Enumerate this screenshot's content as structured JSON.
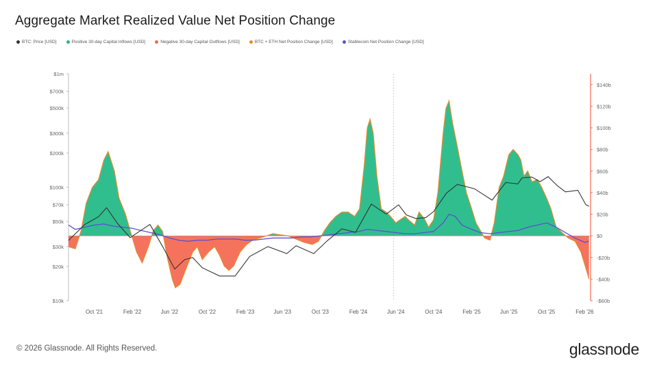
{
  "title": "Aggregate Market Realized Value Net Position Change",
  "watermark": "glassnode",
  "footer": {
    "copyright": "© 2026 Glassnode. All Rights Reserved.",
    "logo": "glassnode"
  },
  "legend": [
    {
      "label": "BTC: Price [USD]",
      "color": "#333333"
    },
    {
      "label": "Positive 30-day Capital Inflows [USD]",
      "color": "#1fb884"
    },
    {
      "label": "Negative 30-day Capital Outflows [USD]",
      "color": "#f4674f"
    },
    {
      "label": "BTC + ETH Net Position Change [USD]",
      "color": "#e8892a"
    },
    {
      "label": "Stablecoin Net Position Change [USD]",
      "color": "#5a4fd1"
    }
  ],
  "chart_data": {
    "type": "area",
    "x_ticks": [
      "Oct '21",
      "Feb '22",
      "Jun '22",
      "Oct '22",
      "Feb '23",
      "Jun '23",
      "Oct '23",
      "Feb '24",
      "Jun '24",
      "Oct '24",
      "Feb '25",
      "Jun '25",
      "Oct '25",
      "Feb '26"
    ],
    "x_tick_dates": [
      "2021-10-01",
      "2022-02-01",
      "2022-06-01",
      "2022-10-01",
      "2023-02-01",
      "2023-06-01",
      "2023-10-01",
      "2024-02-01",
      "2024-06-01",
      "2024-10-01",
      "2025-02-01",
      "2025-06-01",
      "2025-10-01",
      "2026-02-01"
    ],
    "x_range": [
      "2021-07-10",
      "2026-02-20"
    ],
    "left_axis": {
      "scale": "log",
      "range": [
        10000,
        1000000
      ],
      "ticks": [
        10000,
        20000,
        30000,
        50000,
        70000,
        100000,
        200000,
        300000,
        500000,
        700000,
        1000000
      ],
      "tick_labels": [
        "$10k",
        "$20k",
        "$30k",
        "$50k",
        "$70k",
        "$100k",
        "$200k",
        "$300k",
        "$500k",
        "$700k",
        "$1m"
      ]
    },
    "right_axis": {
      "scale": "linear",
      "range": [
        -60,
        150
      ],
      "unit": "b",
      "ticks": [
        -60,
        -40,
        -20,
        0,
        20,
        40,
        60,
        80,
        100,
        120,
        140
      ],
      "tick_labels": [
        "-$60b",
        "-$40b",
        "-$20b",
        "$0",
        "$20b",
        "$40b",
        "$60b",
        "$80b",
        "$100b",
        "$120b",
        "$140b"
      ]
    },
    "series": [
      {
        "name": "BTC + ETH Net Position Change [USD]",
        "axis": "right",
        "dates": [
          "2021-07-10",
          "2021-08-01",
          "2021-08-20",
          "2021-09-05",
          "2021-09-25",
          "2021-10-15",
          "2021-11-01",
          "2021-11-15",
          "2021-12-05",
          "2021-12-20",
          "2022-01-10",
          "2022-01-25",
          "2022-02-15",
          "2022-03-05",
          "2022-03-25",
          "2022-04-10",
          "2022-04-25",
          "2022-05-10",
          "2022-05-25",
          "2022-06-10",
          "2022-06-20",
          "2022-07-05",
          "2022-07-25",
          "2022-08-15",
          "2022-08-30",
          "2022-09-15",
          "2022-10-05",
          "2022-10-25",
          "2022-11-10",
          "2022-11-25",
          "2022-12-10",
          "2022-12-25",
          "2023-01-15",
          "2023-02-05",
          "2023-02-25",
          "2023-03-20",
          "2023-04-10",
          "2023-05-01",
          "2023-05-25",
          "2023-06-20",
          "2023-07-15",
          "2023-08-10",
          "2023-09-05",
          "2023-09-25",
          "2023-10-15",
          "2023-11-01",
          "2023-11-20",
          "2023-12-10",
          "2023-12-30",
          "2024-01-20",
          "2024-02-05",
          "2024-02-20",
          "2024-03-01",
          "2024-03-10",
          "2024-03-20",
          "2024-04-01",
          "2024-04-15",
          "2024-05-01",
          "2024-05-15",
          "2024-06-01",
          "2024-06-15",
          "2024-07-01",
          "2024-07-15",
          "2024-08-01",
          "2024-08-15",
          "2024-09-01",
          "2024-09-15",
          "2024-10-01",
          "2024-10-15",
          "2024-11-01",
          "2024-11-10",
          "2024-11-20",
          "2024-12-01",
          "2024-12-15",
          "2025-01-01",
          "2025-01-15",
          "2025-02-01",
          "2025-02-15",
          "2025-03-01",
          "2025-03-15",
          "2025-04-01",
          "2025-04-15",
          "2025-05-01",
          "2025-05-15",
          "2025-06-01",
          "2025-06-15",
          "2025-07-01",
          "2025-07-10",
          "2025-07-20",
          "2025-08-01",
          "2025-08-15",
          "2025-09-01",
          "2025-09-15",
          "2025-10-01",
          "2025-10-15",
          "2025-11-01",
          "2025-11-20",
          "2025-12-10",
          "2026-01-01",
          "2026-01-20",
          "2026-02-05",
          "2026-02-15"
        ],
        "values": [
          -10,
          -12,
          5,
          30,
          45,
          52,
          70,
          78,
          60,
          35,
          20,
          5,
          -15,
          -25,
          -10,
          5,
          10,
          4,
          -20,
          -40,
          -48,
          -45,
          -30,
          -15,
          -10,
          -22,
          -15,
          -10,
          -18,
          -28,
          -32,
          -28,
          -15,
          -8,
          -4,
          -2,
          0,
          2,
          1,
          0,
          -3,
          -6,
          -8,
          -5,
          5,
          12,
          18,
          22,
          22,
          18,
          25,
          65,
          100,
          108,
          95,
          55,
          25,
          22,
          18,
          12,
          15,
          18,
          14,
          10,
          22,
          16,
          8,
          15,
          40,
          95,
          118,
          125,
          105,
          85,
          60,
          40,
          25,
          12,
          5,
          -2,
          -4,
          12,
          45,
          55,
          75,
          80,
          75,
          70,
          55,
          60,
          50,
          52,
          45,
          35,
          25,
          8,
          3,
          -2,
          -5,
          -15,
          -30,
          -40
        ],
        "color": "#e8892a"
      },
      {
        "name": "Stablecoin Net Position Change [USD]",
        "axis": "right",
        "dates": [
          "2021-07-10",
          "2021-08-01",
          "2021-09-01",
          "2021-10-01",
          "2021-11-01",
          "2021-12-01",
          "2022-01-01",
          "2022-02-01",
          "2022-03-01",
          "2022-04-01",
          "2022-05-01",
          "2022-06-01",
          "2022-07-01",
          "2022-08-01",
          "2022-09-01",
          "2022-10-01",
          "2022-11-01",
          "2022-12-01",
          "2023-01-01",
          "2023-02-01",
          "2023-03-01",
          "2023-04-01",
          "2023-05-01",
          "2023-06-01",
          "2023-07-01",
          "2023-08-01",
          "2023-09-01",
          "2023-10-01",
          "2023-11-01",
          "2023-12-01",
          "2024-01-01",
          "2024-02-01",
          "2024-03-01",
          "2024-04-01",
          "2024-05-01",
          "2024-06-01",
          "2024-07-01",
          "2024-08-01",
          "2024-09-01",
          "2024-10-01",
          "2024-11-01",
          "2024-11-20",
          "2024-12-10",
          "2025-01-01",
          "2025-02-01",
          "2025-03-01",
          "2025-04-01",
          "2025-05-01",
          "2025-06-01",
          "2025-07-01",
          "2025-08-01",
          "2025-09-01",
          "2025-10-01",
          "2025-11-01",
          "2025-12-01",
          "2026-01-01",
          "2026-02-01",
          "2026-02-15"
        ],
        "values": [
          10,
          6,
          8,
          10,
          11,
          9,
          8,
          7,
          5,
          3,
          1,
          -2,
          -4,
          -5,
          -4,
          -4,
          -3,
          -3,
          -3,
          -4,
          -4,
          -3,
          -2,
          -2,
          -2,
          -1,
          -1,
          0,
          1,
          2,
          3,
          4,
          6,
          5,
          4,
          3,
          2,
          2,
          3,
          4,
          12,
          20,
          18,
          10,
          6,
          3,
          2,
          3,
          4,
          5,
          8,
          10,
          12,
          8,
          3,
          -2,
          -6,
          -5
        ],
        "color": "#5a4fd1"
      },
      {
        "name": "BTC: Price [USD]",
        "axis": "left",
        "dates": [
          "2021-07-10",
          "2021-09-01",
          "2021-10-15",
          "2021-11-10",
          "2021-12-15",
          "2022-01-25",
          "2022-03-30",
          "2022-05-10",
          "2022-06-18",
          "2022-07-20",
          "2022-08-15",
          "2022-09-15",
          "2022-11-10",
          "2022-12-30",
          "2023-02-15",
          "2023-04-15",
          "2023-06-15",
          "2023-07-15",
          "2023-09-10",
          "2023-10-25",
          "2023-12-10",
          "2024-01-23",
          "2024-03-14",
          "2024-05-01",
          "2024-06-10",
          "2024-07-05",
          "2024-08-05",
          "2024-09-06",
          "2024-10-01",
          "2024-11-12",
          "2024-12-17",
          "2025-02-10",
          "2025-04-08",
          "2025-05-22",
          "2025-06-30",
          "2025-07-14",
          "2025-08-14",
          "2025-09-10",
          "2025-10-06",
          "2025-11-05",
          "2025-12-01",
          "2026-01-10",
          "2026-02-05",
          "2026-02-15"
        ],
        "values": [
          34000,
          47000,
          55000,
          66000,
          48000,
          36000,
          47000,
          30000,
          19000,
          23000,
          24000,
          19500,
          16500,
          16500,
          24500,
          30000,
          26000,
          30500,
          26000,
          34000,
          43000,
          40000,
          71000,
          58000,
          70000,
          57000,
          53000,
          54000,
          61000,
          89000,
          106000,
          97000,
          77000,
          110000,
          107000,
          121000,
          123000,
          112000,
          124000,
          103000,
          91000,
          94000,
          70000,
          68000
        ],
        "color": "#333333"
      }
    ],
    "inflow_color": "#1fb884",
    "outflow_color": "#f4674f"
  }
}
